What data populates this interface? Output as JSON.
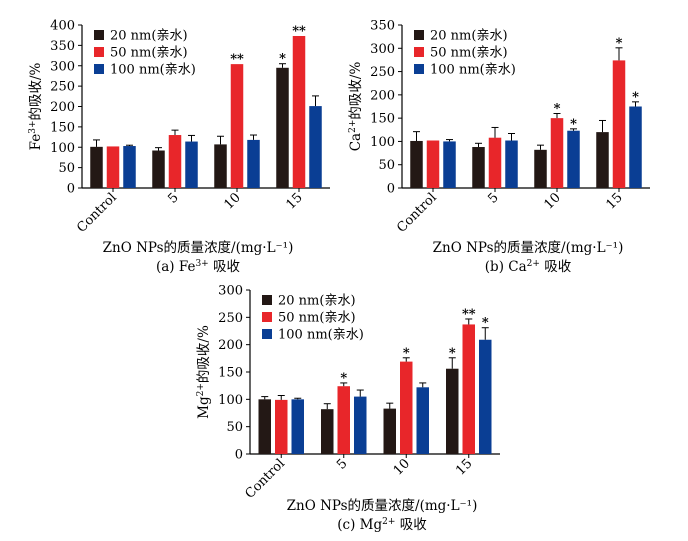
{
  "colors": {
    "s20": "#231815",
    "s50": "#e8262a",
    "s100": "#0a3e94"
  },
  "chart_data": [
    {
      "type": "bar",
      "ylabel": {
        "pre": "Fe",
        "sup": "3+",
        "post": "的吸收/%"
      },
      "xlabel": "ZnO NPs的质量浓度/(mg·L⁻¹)",
      "caption": {
        "pre": "(a) Fe",
        "sup": "3+",
        "post": " 吸收"
      },
      "categories": [
        "Control",
        "5",
        "10",
        "15"
      ],
      "ylim": [
        0,
        400
      ],
      "yticks": [
        0,
        50,
        100,
        150,
        200,
        250,
        300,
        350,
        400
      ],
      "legend": "top-left",
      "series": [
        {
          "name": "20 nm(亲水)",
          "values": [
            101,
            92,
            107,
            295
          ],
          "errors": [
            17,
            7,
            20,
            10
          ],
          "stars": [
            "",
            "",
            "",
            "*"
          ]
        },
        {
          "name": "50 nm(亲水)",
          "values": [
            102,
            130,
            304,
            373
          ],
          "errors": [
            0,
            12,
            0,
            0
          ],
          "stars": [
            "",
            "",
            "**",
            "**"
          ]
        },
        {
          "name": "100 nm(亲水)",
          "values": [
            103,
            114,
            118,
            201
          ],
          "errors": [
            2,
            15,
            12,
            25
          ],
          "stars": [
            "",
            "",
            "",
            ""
          ]
        }
      ]
    },
    {
      "type": "bar",
      "ylabel": {
        "pre": "Ca",
        "sup": "2+",
        "post": "的吸收/%"
      },
      "xlabel": "ZnO NPs的质量浓度/(mg·L⁻¹)",
      "caption": {
        "pre": "(b) Ca",
        "sup": "2+",
        "post": " 吸收"
      },
      "categories": [
        "Control",
        "5",
        "10",
        "15"
      ],
      "ylim": [
        0,
        350
      ],
      "yticks": [
        0,
        50,
        100,
        150,
        200,
        250,
        300,
        350
      ],
      "legend": "top-left",
      "series": [
        {
          "name": "20 nm(亲水)",
          "values": [
            101,
            88,
            82,
            120
          ],
          "errors": [
            20,
            8,
            10,
            25
          ],
          "stars": [
            "",
            "",
            "",
            ""
          ]
        },
        {
          "name": "50 nm(亲水)",
          "values": [
            102,
            108,
            150,
            274
          ],
          "errors": [
            0,
            22,
            10,
            27
          ],
          "stars": [
            "",
            "",
            "*",
            "*"
          ]
        },
        {
          "name": "100 nm(亲水)",
          "values": [
            100,
            102,
            123,
            175
          ],
          "errors": [
            4,
            15,
            4,
            10
          ],
          "stars": [
            "",
            "",
            "*",
            "*"
          ]
        }
      ]
    },
    {
      "type": "bar",
      "ylabel": {
        "pre": "Mg",
        "sup": "2+",
        "post": "的吸收/%"
      },
      "xlabel": "ZnO NPs的质量浓度/(mg·L⁻¹)",
      "caption": {
        "pre": "(c) Mg",
        "sup": "2+",
        "post": " 吸收"
      },
      "categories": [
        "Control",
        "5",
        "10",
        "15"
      ],
      "ylim": [
        0,
        300
      ],
      "yticks": [
        0,
        50,
        100,
        150,
        200,
        250,
        300
      ],
      "legend": "top-left",
      "series": [
        {
          "name": "20 nm(亲水)",
          "values": [
            100,
            82,
            83,
            156
          ],
          "errors": [
            5,
            10,
            10,
            20
          ],
          "stars": [
            "",
            "",
            "",
            "*"
          ]
        },
        {
          "name": "50 nm(亲水)",
          "values": [
            99,
            124,
            169,
            237
          ],
          "errors": [
            8,
            6,
            7,
            10
          ],
          "stars": [
            "",
            "*",
            "*",
            "**"
          ]
        },
        {
          "name": "100 nm(亲水)",
          "values": [
            100,
            105,
            122,
            209
          ],
          "errors": [
            2,
            12,
            8,
            22
          ],
          "stars": [
            "",
            "",
            "",
            "*"
          ]
        }
      ]
    }
  ]
}
